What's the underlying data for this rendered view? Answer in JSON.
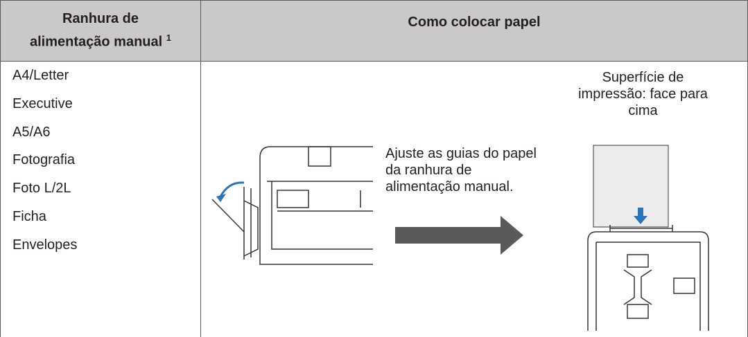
{
  "header": {
    "col1_lines": [
      "Ranhura de",
      "alimentação manual"
    ],
    "col1_footnote": "1",
    "col2": "Como colocar papel"
  },
  "paper_types": [
    "A4/Letter",
    "Executive",
    "A5/A6",
    "Fotografia",
    "Foto L/2L",
    "Ficha",
    "Envelopes"
  ],
  "instruction_lines": [
    "Ajuste as guias do papel",
    "da ranhura de",
    "alimentação manual."
  ],
  "print_side_label_lines": [
    "Superfície de",
    "impressão: face para",
    "cima"
  ]
}
